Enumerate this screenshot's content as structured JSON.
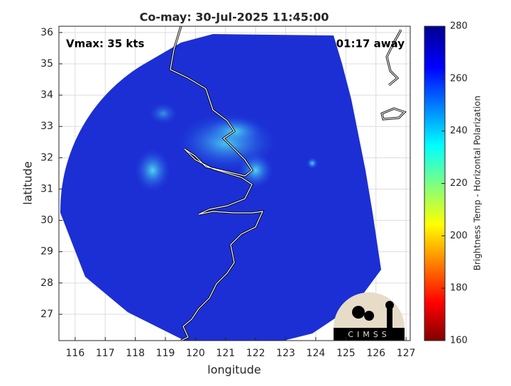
{
  "chart_data": {
    "type": "map",
    "title": "Co-may: 30-Jul-2025 11:45:00",
    "annotations": [
      "Vmax: 35 kts",
      "01:17 away"
    ],
    "x_label": "longitude",
    "y_label": "latitude",
    "xlim": [
      115.46,
      127.14
    ],
    "xticks": [
      116,
      117,
      118,
      119,
      120,
      121,
      122,
      123,
      124,
      125,
      126,
      127
    ],
    "ylim": [
      26.16,
      36.2
    ],
    "yticks": [
      27,
      28,
      29,
      30,
      31,
      32,
      33,
      34,
      35,
      36
    ],
    "grid": true,
    "colorbar": {
      "label": "Brightness Temp - Horizontal Polarization",
      "lim": [
        160,
        280
      ],
      "ticks": [
        160,
        180,
        200,
        220,
        240,
        260,
        280
      ]
    },
    "logo": "CIMSS"
  }
}
